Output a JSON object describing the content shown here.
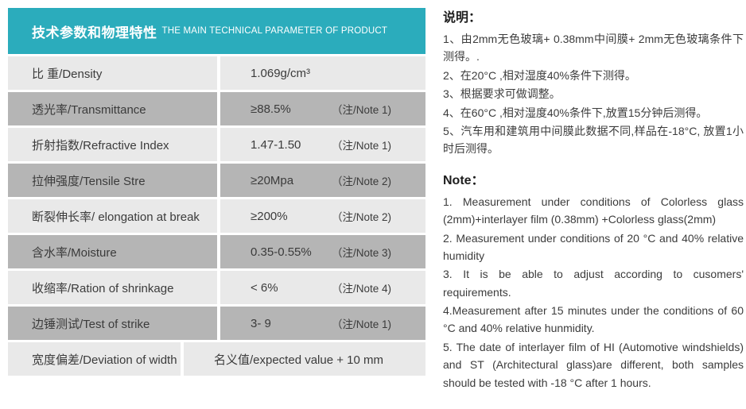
{
  "colors": {
    "header_teal": "#2BACBC",
    "row_light": "#E9E9E9",
    "row_dark": "#B5B5B5",
    "text_dark": "#3B3B3B"
  },
  "table": {
    "header": {
      "title_zh": "技术参数和物理特性",
      "title_en": "THE MAIN TECHNICAL PARAMETER OF PRODUCT"
    },
    "rows": [
      {
        "label": "比 重/Density",
        "value": "1.069g/cm³",
        "note": ""
      },
      {
        "label": "透光率/Transmittance",
        "value": "≥88.5%",
        "note": "（注/Note 1)"
      },
      {
        "label": "折射指数/Refractive Index",
        "value": "1.47-1.50",
        "note": "（注/Note 1)"
      },
      {
        "label": "拉伸强度/Tensile Stre",
        "value": "≥20Mpa",
        "note": "（注/Note 2)"
      },
      {
        "label": "断裂伸长率/ elongation at break",
        "value": "≥200%",
        "note": "（注/Note 2)"
      },
      {
        "label": "含水率/Moisture",
        "value": "0.35-0.55%",
        "note": "（注/Note 3)"
      },
      {
        "label": "收缩率/Ration of shrinkage",
        "value": "< 6%",
        "note": "（注/Note 4)"
      },
      {
        "label": "边锤测试/Test of strike",
        "value": "3- 9",
        "note": "（注/Note 1)"
      },
      {
        "label": "宽度偏差/Deviation of width",
        "value": "名义值/expected value + 10 mm",
        "note": ""
      }
    ]
  },
  "notes_zh": {
    "heading": "说明：",
    "items": [
      "1、由2mm无色玻璃+ 0.38mm中间膜+ 2mm无色玻璃条件下测得。.",
      "2、在20°C ,相对湿度40%条件下测得。",
      "3、根据要求可做调整。",
      "4、在60°C ,相对湿度40%条件下,放置15分钟后测得。",
      "5、汽车用和建筑用中间膜此数据不同,样品在-18°C, 放置1小时后测得。"
    ]
  },
  "notes_en": {
    "heading": "Note：",
    "items": [
      "1. Measurement under conditions of Colorless glass (2mm)+interlayer film (0.38mm) +Colorless glass(2mm)",
      "2. Measurement under conditions of 20 °C and 40% relative humidity",
      "3. It is be able to adjust according to cusomers' requirements.",
      "4.Measurement after 15 minutes under the conditions of 60 °C and 40% relative hunmidity.",
      "5. The date of interlayer film of HI (Automotive windshields) and ST (Architectural glass)are different, both samples should be tested with -18 °C after 1 hours."
    ]
  }
}
